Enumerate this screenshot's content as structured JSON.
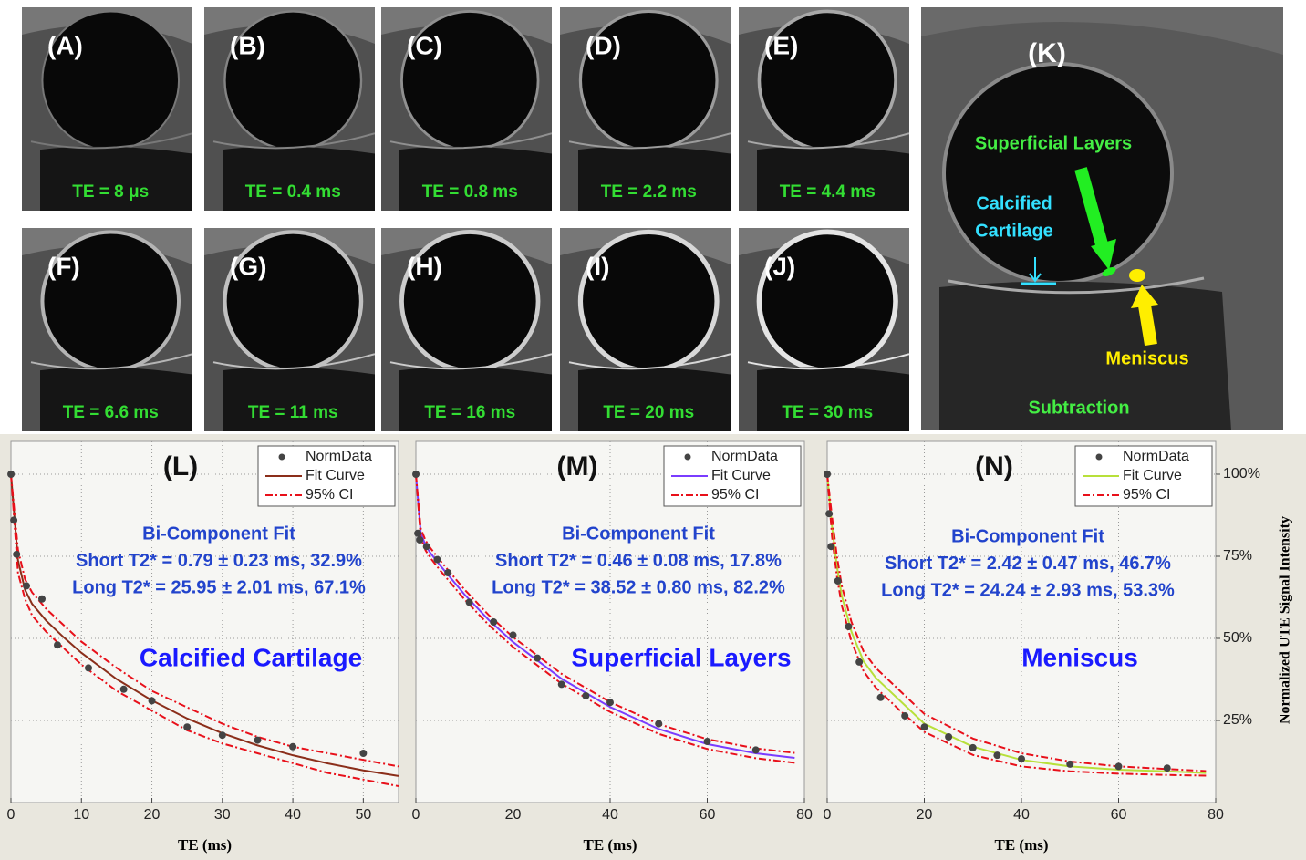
{
  "images": [
    {
      "label": "(A)",
      "te": "TE = 8 μs"
    },
    {
      "label": "(B)",
      "te": "TE = 0.4 ms"
    },
    {
      "label": "(C)",
      "te": "TE = 0.8 ms"
    },
    {
      "label": "(D)",
      "te": "TE = 2.2 ms"
    },
    {
      "label": "(E)",
      "te": "TE = 4.4 ms"
    },
    {
      "label": "(F)",
      "te": "TE = 6.6 ms"
    },
    {
      "label": "(G)",
      "te": "TE = 11 ms"
    },
    {
      "label": "(H)",
      "te": "TE = 16 ms"
    },
    {
      "label": "(I)",
      "te": "TE = 20 ms"
    },
    {
      "label": "(J)",
      "te": "TE = 30 ms"
    }
  ],
  "subtraction": {
    "label": "(K)",
    "superficial": "Superficial Layers",
    "calcified": [
      "Calcified",
      "Cartilage"
    ],
    "meniscus": "Meniscus",
    "caption": "Subtraction"
  },
  "chart_data": [
    {
      "type": "line",
      "panel": "(L)",
      "annotations": [
        "Bi-Component Fit",
        "Short T2* = 0.79 ± 0.23 ms, 32.9%",
        "Long T2* = 25.95 ± 2.01 ms, 67.1%"
      ],
      "tissue": "Calcified Cartilage",
      "xlabel": "TE (ms)",
      "xlim": [
        0,
        55
      ],
      "xticks": [
        0,
        10,
        20,
        30,
        40,
        50
      ],
      "ylim": [
        0,
        110
      ],
      "yticks": [
        25,
        50,
        75,
        100
      ],
      "grid": true,
      "series": [
        {
          "name": "NormData",
          "style": "markers",
          "color": "#444444",
          "x": [
            0.008,
            0.4,
            0.8,
            2.2,
            4.4,
            6.6,
            11,
            16,
            20,
            25,
            30,
            35,
            40,
            50
          ],
          "values": [
            100,
            86,
            75.6,
            66,
            62,
            48,
            41,
            34.5,
            31,
            23,
            20.5,
            19,
            17,
            15
          ]
        },
        {
          "name": "Fit Curve",
          "style": "solid",
          "color": "#8b2e1a",
          "x": [
            0,
            1,
            2,
            3,
            5,
            7.5,
            10,
            15,
            20,
            25,
            30,
            35,
            40,
            45,
            50,
            55
          ],
          "values": [
            100,
            73.8,
            64.8,
            60.5,
            55.4,
            50.3,
            45.6,
            37.6,
            31.1,
            25.6,
            21.1,
            17.4,
            14.4,
            11.9,
            9.8,
            8.1
          ]
        },
        {
          "name": "95% CI",
          "style": "dashdot",
          "color": "#e8101a",
          "x": [
            0,
            1,
            2,
            3,
            5,
            7.5,
            10,
            15,
            20,
            25,
            30,
            35,
            40,
            45,
            50,
            55
          ],
          "values": [
            100,
            77,
            68,
            64,
            59,
            54,
            49,
            41,
            34,
            29,
            24,
            20,
            17,
            15,
            13,
            11
          ],
          "lower": [
            100,
            70,
            62,
            57,
            52,
            47,
            42,
            34,
            28,
            22,
            18,
            15,
            12,
            9,
            7,
            5
          ]
        }
      ]
    },
    {
      "type": "line",
      "panel": "(M)",
      "annotations": [
        "Bi-Component Fit",
        "Short T2* = 0.46 ± 0.08 ms, 17.8%",
        "Long T2* = 38.52 ± 0.80 ms, 82.2%"
      ],
      "tissue": "Superficial Layers",
      "xlabel": "TE (ms)",
      "xlim": [
        0,
        80
      ],
      "xticks": [
        0,
        20,
        40,
        60,
        80
      ],
      "ylim": [
        0,
        110
      ],
      "yticks": [
        25,
        50,
        75,
        100
      ],
      "grid": true,
      "series": [
        {
          "name": "NormData",
          "style": "markers",
          "color": "#444444",
          "x": [
            0.008,
            0.4,
            0.8,
            2.2,
            4.4,
            6.6,
            11,
            16,
            20,
            25,
            30,
            35,
            40,
            50,
            60,
            70
          ],
          "values": [
            100,
            82,
            80,
            78,
            74,
            70,
            61,
            55,
            51,
            44,
            36,
            32.5,
            30.5,
            24,
            18.6,
            16
          ]
        },
        {
          "name": "Fit Curve",
          "style": "solid",
          "color": "#7a3cff",
          "x": [
            0,
            1,
            2,
            3,
            5,
            10,
            15,
            20,
            30,
            40,
            50,
            60,
            70,
            78
          ],
          "values": [
            100,
            82.1,
            78.3,
            76,
            72.2,
            63.4,
            55.6,
            48.9,
            37.7,
            29.1,
            22.4,
            17.8,
            15,
            13.6
          ]
        },
        {
          "name": "95% CI",
          "style": "dashdot",
          "color": "#e8101a",
          "x": [
            0,
            1,
            2,
            3,
            5,
            10,
            15,
            20,
            30,
            40,
            50,
            60,
            70,
            78
          ],
          "values": [
            100,
            83.5,
            79.8,
            77.5,
            73.7,
            64.9,
            57.1,
            50.4,
            39.2,
            30.6,
            23.9,
            19.3,
            16.5,
            15.1
          ],
          "lower": [
            100,
            80.6,
            76.8,
            74.5,
            70.7,
            61.9,
            54.1,
            47.4,
            36.2,
            27.6,
            20.9,
            16.3,
            13.5,
            12.1
          ]
        }
      ]
    },
    {
      "type": "line",
      "panel": "(N)",
      "annotations": [
        "Bi-Component Fit",
        "Short T2* = 2.42 ± 0.47 ms, 46.7%",
        "Long T2* = 24.24 ± 2.93 ms, 53.3%"
      ],
      "tissue": "Meniscus",
      "xlabel": "TE (ms)",
      "ylabel": "Normalized UTE Signal Intensity",
      "xlim": [
        0,
        80
      ],
      "xticks": [
        0,
        20,
        40,
        60,
        80
      ],
      "ylim": [
        0,
        110
      ],
      "yticks": [
        {
          "value": 25,
          "label": "25%"
        },
        {
          "value": 50,
          "label": "50%"
        },
        {
          "value": 75,
          "label": "75%"
        },
        {
          "value": 100,
          "label": "100%"
        }
      ],
      "grid": true,
      "series": [
        {
          "name": "NormData",
          "style": "markers",
          "color": "#444444",
          "x": [
            0.008,
            0.4,
            0.8,
            2.2,
            4.4,
            6.6,
            11,
            16,
            20,
            25,
            30,
            35,
            40,
            50,
            60,
            70
          ],
          "values": [
            100,
            88,
            78,
            67.5,
            53.6,
            42.8,
            32,
            26.4,
            23,
            20,
            16.7,
            14.4,
            13.3,
            11.7,
            11,
            10.5
          ]
        },
        {
          "name": "Fit Curve",
          "style": "solid",
          "color": "#b8e03a",
          "x": [
            0,
            1,
            2,
            3,
            5,
            7.5,
            10,
            15,
            20,
            30,
            40,
            50,
            60,
            70,
            78
          ],
          "values": [
            100,
            84,
            72,
            63,
            52,
            43,
            38,
            31,
            24,
            17,
            13,
            11,
            10,
            9.5,
            9
          ]
        },
        {
          "name": "95% CI",
          "style": "dashdot",
          "color": "#e8101a",
          "x": [
            0,
            1,
            2,
            3,
            5,
            7.5,
            10,
            15,
            20,
            30,
            40,
            50,
            60,
            70,
            78
          ],
          "values": [
            100,
            87,
            75,
            66,
            55,
            46,
            41,
            34,
            27,
            19.5,
            15,
            12.5,
            11,
            10.2,
            9.6
          ],
          "lower": [
            100,
            81,
            69,
            60,
            49,
            40,
            35,
            28,
            21.5,
            14.5,
            11,
            9.5,
            8.8,
            8.4,
            8.2
          ]
        }
      ]
    }
  ]
}
